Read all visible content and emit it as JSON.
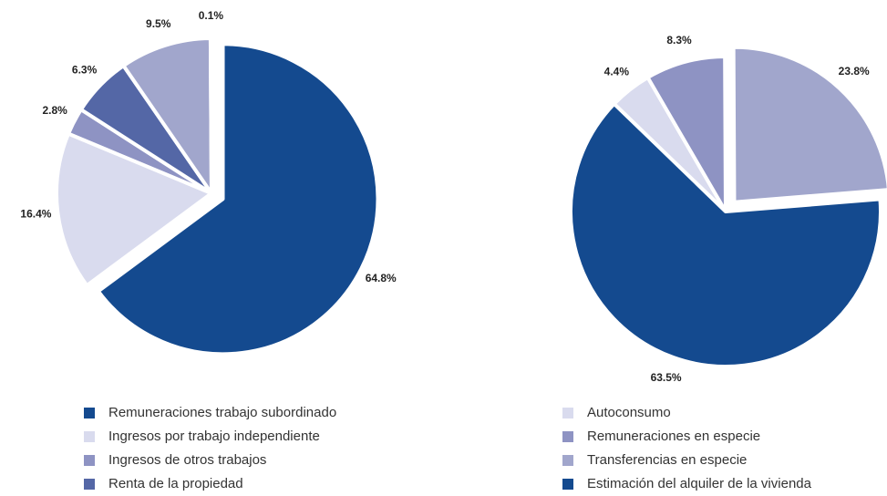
{
  "chart_data": [
    {
      "type": "pie",
      "categories": [
        "Remuneraciones trabajo subordinado",
        "Ingresos por trabajo independiente",
        "Ingresos de otros trabajos",
        "Renta de la propiedad",
        null,
        null
      ],
      "values": [
        64.8,
        16.4,
        2.8,
        6.3,
        9.5,
        0.1
      ],
      "value_labels": [
        "64.8%",
        "16.4%",
        "2.8%",
        "6.3%",
        "9.5%",
        "0.1%"
      ],
      "colors": [
        "#144a8f",
        "#d9dbee",
        "#8e93c3",
        "#5467a6",
        "#a1a6cc",
        "#3c5598"
      ],
      "explode": [
        1,
        0,
        0,
        0,
        0,
        0
      ],
      "startangle": 0
    },
    {
      "type": "pie",
      "categories": [
        "Autoconsumo",
        "Remuneraciones en especie",
        "Transferencias en especie",
        "Estimación del alquiler de la vivienda"
      ],
      "values": [
        4.4,
        8.3,
        23.8,
        63.5
      ],
      "value_labels": [
        "4.4%",
        "8.3%",
        "23.8%",
        "63.5%"
      ],
      "colors": [
        "#d9dbee",
        "#8e93c3",
        "#a1a6cc",
        "#144a8f"
      ],
      "explode": [
        0,
        0,
        1,
        0
      ],
      "startangle": -46
    }
  ]
}
